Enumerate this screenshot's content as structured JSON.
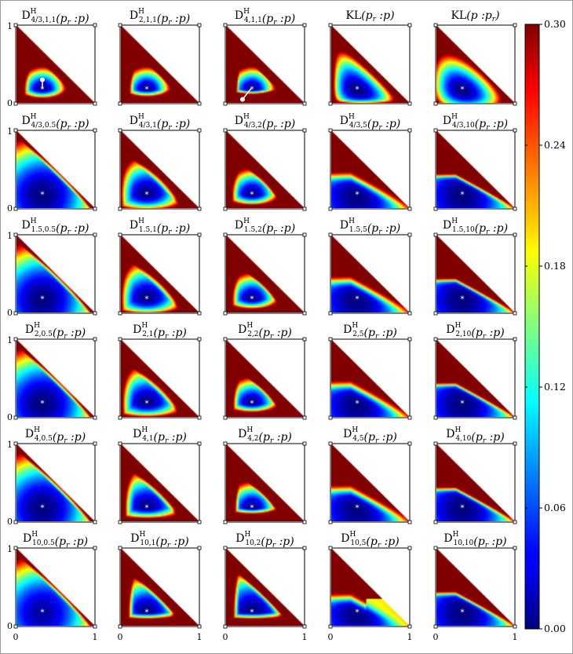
{
  "figure": {
    "axis_tick_labels": {
      "low": "0",
      "high": "1"
    },
    "rows": [
      [
        {
          "main": "D",
          "sup": "H",
          "sub": "4/3,1,1",
          "args": "(p",
          "args_sub": "r",
          "args_end": " :p)",
          "alpha": 1.333,
          "beta": 1,
          "gamma": 1,
          "variant": "standard",
          "arrow": "vertical"
        },
        {
          "main": "D",
          "sup": "H",
          "sub": "2,1,1",
          "args": "(p",
          "args_sub": "r",
          "args_end": " :p)",
          "alpha": 2,
          "beta": 1,
          "gamma": 1,
          "variant": "standard"
        },
        {
          "main": "D",
          "sup": "H",
          "sub": "4,1,1",
          "args": "(p",
          "args_sub": "r",
          "args_end": " :p)",
          "alpha": 4,
          "beta": 1,
          "gamma": 1,
          "variant": "standard",
          "arrow": "diagonal"
        },
        {
          "main": "KL",
          "sup": "",
          "sub": "",
          "args": "(p",
          "args_sub": "r",
          "args_end": " :p)",
          "variant": "kl_forward"
        },
        {
          "main": "KL",
          "sup": "",
          "sub": "",
          "args": "(p :p",
          "args_sub": "r",
          "args_end": ")",
          "variant": "kl_reverse"
        }
      ],
      [
        {
          "main": "D",
          "sup": "H",
          "sub": "4/3,0.5",
          "args": "(p",
          "args_sub": "r",
          "args_end": " :p)",
          "alpha": 1.333,
          "beta": 0.5
        },
        {
          "main": "D",
          "sup": "H",
          "sub": "4/3,1",
          "args": "(p",
          "args_sub": "r",
          "args_end": " :p)",
          "alpha": 1.333,
          "beta": 1
        },
        {
          "main": "D",
          "sup": "H",
          "sub": "4/3,2",
          "args": "(p",
          "args_sub": "r",
          "args_end": " :p)",
          "alpha": 1.333,
          "beta": 2
        },
        {
          "main": "D",
          "sup": "H",
          "sub": "4/3,5",
          "args": "(p",
          "args_sub": "r",
          "args_end": " :p)",
          "alpha": 1.333,
          "beta": 5
        },
        {
          "main": "D",
          "sup": "H",
          "sub": "4/3,10",
          "args": "(p",
          "args_sub": "r",
          "args_end": " :p)",
          "alpha": 1.333,
          "beta": 10
        }
      ],
      [
        {
          "main": "D",
          "sup": "H",
          "sub": "1.5,0.5",
          "args": "(p",
          "args_sub": "r",
          "args_end": " :p)",
          "alpha": 1.5,
          "beta": 0.5
        },
        {
          "main": "D",
          "sup": "H",
          "sub": "1.5,1",
          "args": "(p",
          "args_sub": "r",
          "args_end": " :p)",
          "alpha": 1.5,
          "beta": 1
        },
        {
          "main": "D",
          "sup": "H",
          "sub": "1.5,2",
          "args": "(p",
          "args_sub": "r",
          "args_end": " :p)",
          "alpha": 1.5,
          "beta": 2
        },
        {
          "main": "D",
          "sup": "H",
          "sub": "1.5,5",
          "args": "(p",
          "args_sub": "r",
          "args_end": " :p)",
          "alpha": 1.5,
          "beta": 5
        },
        {
          "main": "D",
          "sup": "H",
          "sub": "1.5,10",
          "args": "(p",
          "args_sub": "r",
          "args_end": " :p)",
          "alpha": 1.5,
          "beta": 10
        }
      ],
      [
        {
          "main": "D",
          "sup": "H",
          "sub": "2,0.5",
          "args": "(p",
          "args_sub": "r",
          "args_end": " :p)",
          "alpha": 2,
          "beta": 0.5
        },
        {
          "main": "D",
          "sup": "H",
          "sub": "2,1",
          "args": "(p",
          "args_sub": "r",
          "args_end": " :p)",
          "alpha": 2,
          "beta": 1
        },
        {
          "main": "D",
          "sup": "H",
          "sub": "2,2",
          "args": "(p",
          "args_sub": "r",
          "args_end": " :p)",
          "alpha": 2,
          "beta": 2
        },
        {
          "main": "D",
          "sup": "H",
          "sub": "2,5",
          "args": "(p",
          "args_sub": "r",
          "args_end": " :p)",
          "alpha": 2,
          "beta": 5
        },
        {
          "main": "D",
          "sup": "H",
          "sub": "2,10",
          "args": "(p",
          "args_sub": "r",
          "args_end": " :p)",
          "alpha": 2,
          "beta": 10
        }
      ],
      [
        {
          "main": "D",
          "sup": "H",
          "sub": "4,0.5",
          "args": "(p",
          "args_sub": "r",
          "args_end": " :p)",
          "alpha": 4,
          "beta": 0.5
        },
        {
          "main": "D",
          "sup": "H",
          "sub": "4,1",
          "args": "(p",
          "args_sub": "r",
          "args_end": " :p)",
          "alpha": 4,
          "beta": 1
        },
        {
          "main": "D",
          "sup": "H",
          "sub": "4,2",
          "args": "(p",
          "args_sub": "r",
          "args_end": " :p)",
          "alpha": 4,
          "beta": 2
        },
        {
          "main": "D",
          "sup": "H",
          "sub": "4,5",
          "args": "(p",
          "args_sub": "r",
          "args_end": " :p)",
          "alpha": 4,
          "beta": 5
        },
        {
          "main": "D",
          "sup": "H",
          "sub": "4,10",
          "args": "(p",
          "args_sub": "r",
          "args_end": " :p)",
          "alpha": 4,
          "beta": 10
        }
      ],
      [
        {
          "main": "D",
          "sup": "H",
          "sub": "10,0.5",
          "args": "(p",
          "args_sub": "r",
          "args_end": " :p)",
          "alpha": 10,
          "beta": 0.5
        },
        {
          "main": "D",
          "sup": "H",
          "sub": "10,1",
          "args": "(p",
          "args_sub": "r",
          "args_end": " :p)",
          "alpha": 10,
          "beta": 1
        },
        {
          "main": "D",
          "sup": "H",
          "sub": "10,2",
          "args": "(p",
          "args_sub": "r",
          "args_end": " :p)",
          "alpha": 10,
          "beta": 2
        },
        {
          "main": "D",
          "sup": "H",
          "sub": "10,5",
          "args": "(p",
          "args_sub": "r",
          "args_end": " :p)",
          "alpha": 10,
          "beta": 5
        },
        {
          "main": "D",
          "sup": "H",
          "sub": "10,10",
          "args": "(p",
          "args_sub": "r",
          "args_end": " :p)",
          "alpha": 10,
          "beta": 10
        }
      ]
    ],
    "reference_point": [
      0.333,
      0.167
    ],
    "marker_color": "#ffffff",
    "colorbar": {
      "colormap": "jet",
      "min": 0.0,
      "max": 0.3,
      "ticks": [
        "0.30",
        "0.24",
        "0.18",
        "0.12",
        "0.06",
        "0.00"
      ],
      "tick_values": [
        0.3,
        0.24,
        0.18,
        0.12,
        0.06,
        0.0
      ]
    }
  }
}
